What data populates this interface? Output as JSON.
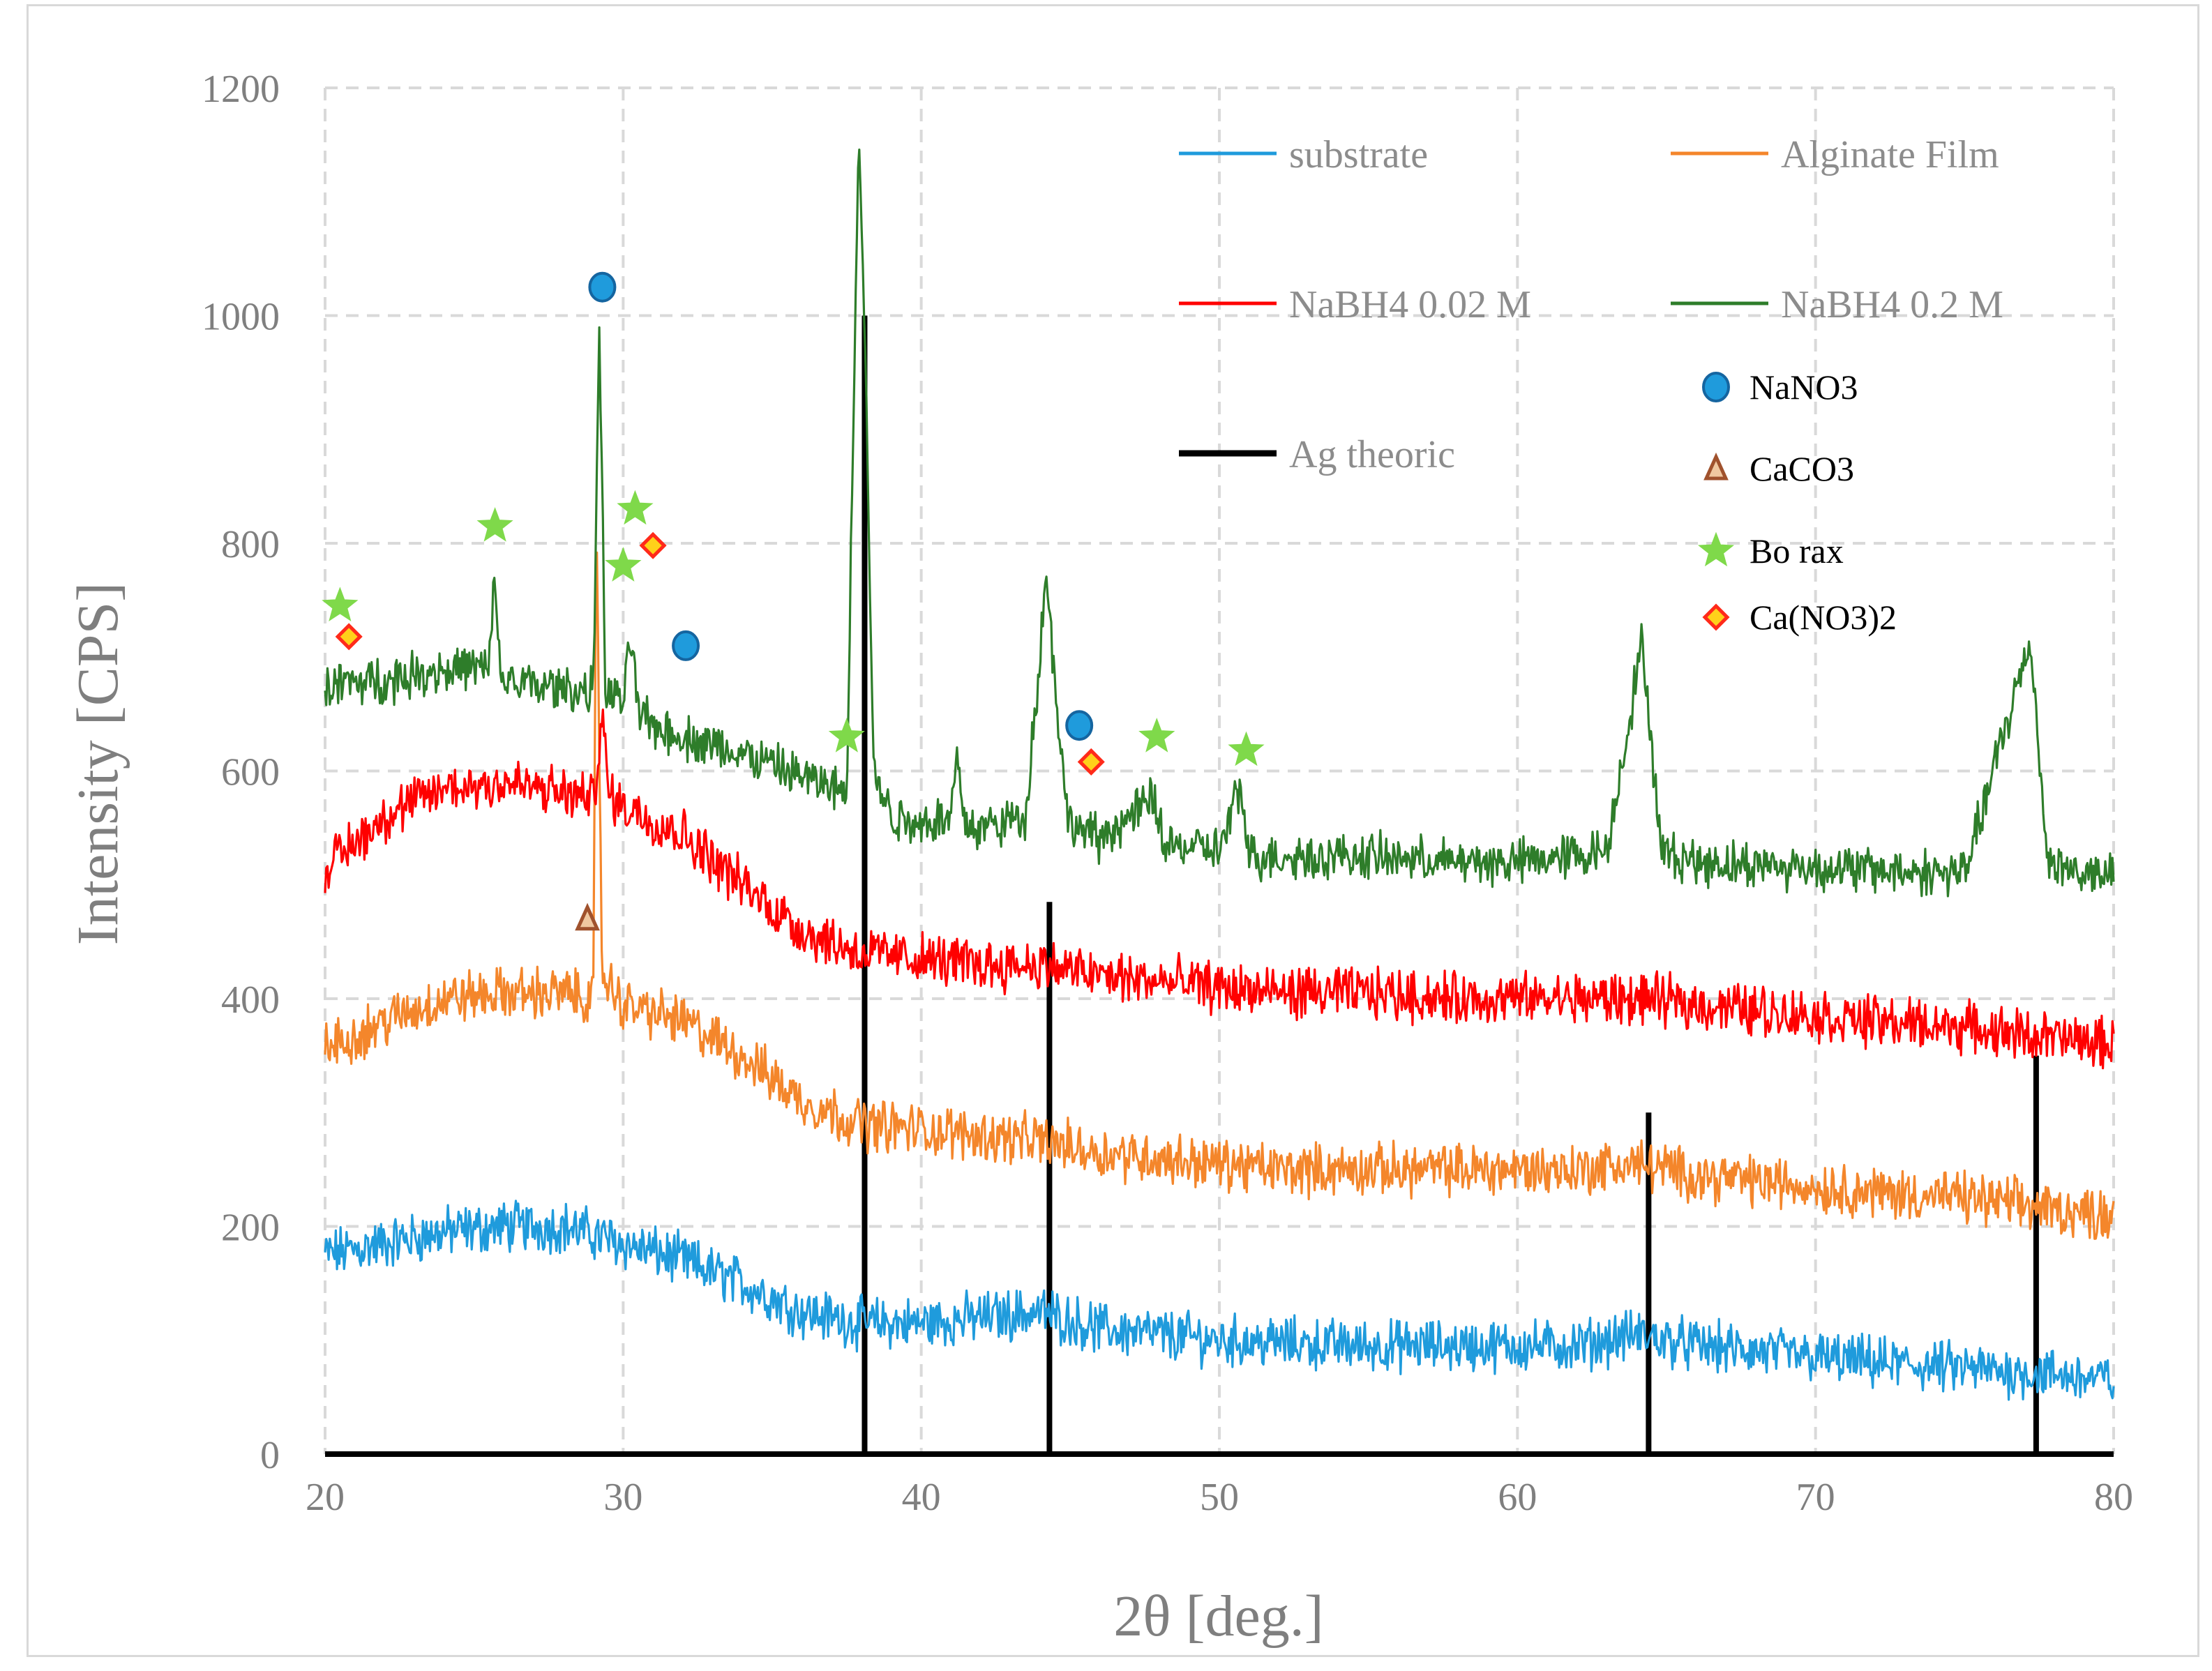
{
  "chart_data": {
    "type": "line",
    "xlabel": "2θ [deg.]",
    "ylabel": "Intensity [CPS]",
    "xlim": [
      20,
      80
    ],
    "ylim": [
      0,
      1200
    ],
    "xticks": [
      20,
      30,
      40,
      50,
      60,
      70,
      80
    ],
    "yticks": [
      0,
      200,
      400,
      600,
      800,
      1000,
      1200
    ],
    "grid": true,
    "series": [
      {
        "name": "substrate",
        "color": "#1f9bdc",
        "x": [
          20,
          22,
          24,
          26,
          28,
          30,
          32,
          34,
          36,
          38,
          40,
          42,
          44,
          46,
          48,
          50,
          52,
          55,
          58,
          60,
          62,
          64,
          66,
          68,
          70,
          72,
          75,
          78,
          80
        ],
        "y": [
          175,
          185,
          195,
          200,
          200,
          185,
          170,
          150,
          125,
          115,
          115,
          120,
          125,
          110,
          105,
          100,
          98,
          95,
          95,
          95,
          95,
          105,
          95,
          90,
          85,
          80,
          75,
          70,
          65
        ]
      },
      {
        "name": "Alginate Film",
        "color": "#f4862b",
        "x": [
          20,
          22,
          24,
          26,
          28,
          29,
          29.1,
          29.3,
          30,
          32,
          34,
          36,
          38,
          40,
          42,
          44,
          46,
          48,
          50,
          52,
          55,
          58,
          60,
          62,
          64,
          66,
          68,
          70,
          72,
          75,
          78,
          80
        ],
        "y": [
          355,
          380,
          400,
          405,
          405,
          400,
          815,
          420,
          395,
          380,
          350,
          310,
          290,
          285,
          280,
          275,
          265,
          260,
          255,
          250,
          250,
          250,
          250,
          250,
          255,
          245,
          240,
          235,
          230,
          225,
          215,
          210
        ]
      },
      {
        "name": "NaBH4 0.02 M",
        "color": "#ff0000",
        "x": [
          20,
          22,
          24,
          26,
          28,
          29,
          29.3,
          29.5,
          30,
          32,
          34,
          36,
          38,
          40,
          42,
          44,
          46,
          48,
          50,
          52,
          55,
          58,
          60,
          62,
          64,
          66,
          68,
          70,
          72,
          75,
          78,
          80
        ],
        "y": [
          515,
          560,
          585,
          590,
          580,
          575,
          650,
          580,
          570,
          545,
          500,
          460,
          440,
          435,
          430,
          430,
          420,
          415,
          410,
          405,
          405,
          400,
          400,
          400,
          400,
          395,
          390,
          385,
          380,
          375,
          365,
          360
        ]
      },
      {
        "name": "NaBH4 0.2 M",
        "color": "#2e7d2a",
        "x": [
          20,
          22,
          24,
          25.5,
          25.7,
          25.9,
          27,
          29,
          29.2,
          29.4,
          30,
          30.3,
          30.5,
          31,
          32,
          34,
          36,
          37.5,
          37.9,
          38.1,
          38.4,
          39,
          40,
          41,
          41.2,
          41.4,
          42,
          43.5,
          44.2,
          44.9,
          46,
          47.8,
          48.2,
          50,
          50.7,
          51,
          55,
          58,
          60,
          63,
          64.2,
          64.8,
          66,
          70,
          75,
          77.2,
          77.8,
          79,
          80
        ],
        "y": [
          675,
          680,
          690,
          690,
          770,
          680,
          675,
          670,
          1000,
          670,
          660,
          720,
          650,
          640,
          630,
          615,
          595,
          580,
          1170,
          1000,
          600,
          560,
          555,
          560,
          620,
          555,
          550,
          560,
          770,
          555,
          540,
          575,
          535,
          530,
          585,
          525,
          525,
          520,
          520,
          530,
          715,
          530,
          520,
          515,
          510,
          715,
          520,
          510,
          505
        ]
      },
      {
        "name": "Ag theoric",
        "color": "#000000",
        "style": "sticks",
        "x": [
          38.1,
          44.3,
          64.4,
          77.4
        ],
        "y": [
          1000,
          485,
          300,
          350
        ]
      }
    ],
    "legend": {
      "placement": "top-right",
      "lines": [
        "substrate",
        "Alginate Film",
        "NaBH4 0.02 M",
        "NaBH4 0.2 M",
        "Ag theoric"
      ],
      "markers": [
        {
          "label": "NaNO3",
          "shape": "circle",
          "color": "#1f9bdc"
        },
        {
          "label": "CaCO3",
          "shape": "triangle",
          "color": "#a0522d"
        },
        {
          "label": "Bo rax",
          "shape": "star",
          "color": "#7fd94a"
        },
        {
          "label": "Ca(NO3)2",
          "shape": "diamond",
          "color": "#ffd11a"
        }
      ]
    },
    "annotations": [
      {
        "type": "circle",
        "x": 29.3,
        "y": 1025
      },
      {
        "type": "circle",
        "x": 32.1,
        "y": 710
      },
      {
        "type": "circle",
        "x": 45.3,
        "y": 640
      },
      {
        "type": "triangle",
        "x": 28.8,
        "y": 470
      },
      {
        "type": "star",
        "x": 20.5,
        "y": 745
      },
      {
        "type": "star",
        "x": 25.7,
        "y": 815
      },
      {
        "type": "star",
        "x": 30.0,
        "y": 780
      },
      {
        "type": "star",
        "x": 30.4,
        "y": 830
      },
      {
        "type": "star",
        "x": 37.5,
        "y": 630
      },
      {
        "type": "star",
        "x": 47.9,
        "y": 630
      },
      {
        "type": "star",
        "x": 50.9,
        "y": 618
      },
      {
        "type": "diamond",
        "x": 20.8,
        "y": 718
      },
      {
        "type": "diamond",
        "x": 31.0,
        "y": 798
      },
      {
        "type": "diamond",
        "x": 45.7,
        "y": 608
      }
    ]
  }
}
